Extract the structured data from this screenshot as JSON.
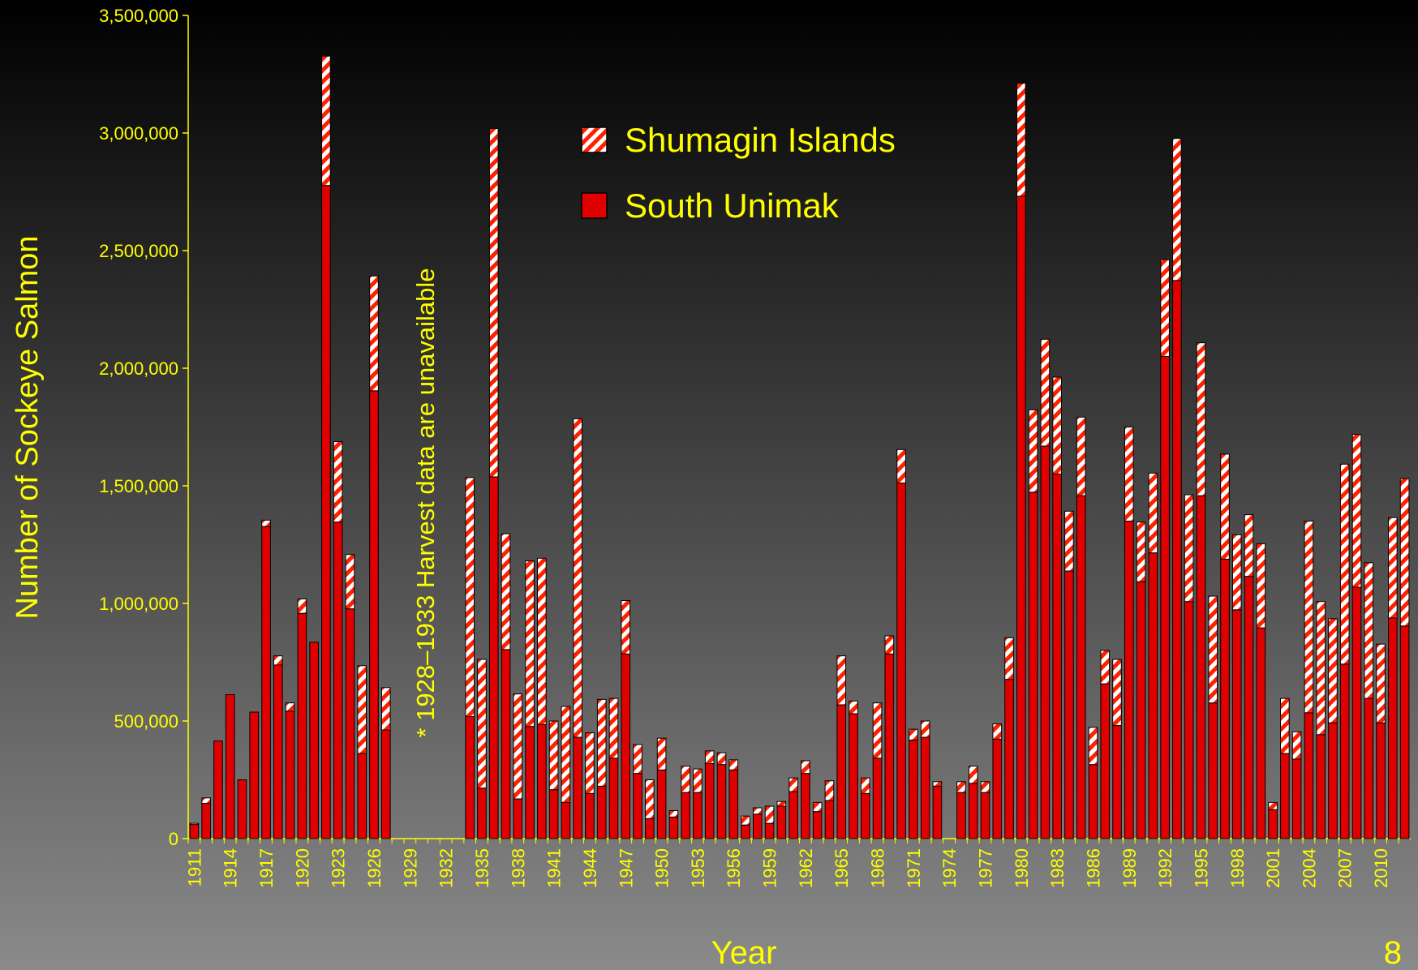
{
  "chart_data": {
    "type": "stacked_bar",
    "xlabel": "Year",
    "ylabel": "Number of Sockeye Salmon",
    "annotation": "* 1928–1933 Harvest data are unavailable",
    "categories": [
      "1911",
      null,
      null,
      "1914",
      null,
      null,
      "1917",
      null,
      null,
      "1920",
      null,
      null,
      "1923",
      null,
      null,
      "1926",
      null,
      null,
      "1929",
      null,
      null,
      "1932",
      null,
      null,
      "1935",
      null,
      null,
      "1938",
      null,
      null,
      "1941",
      null,
      null,
      "1944",
      null,
      null,
      "1947",
      null,
      null,
      "1950",
      null,
      null,
      "1953",
      null,
      null,
      "1956",
      null,
      null,
      "1959",
      null,
      null,
      "1962",
      null,
      null,
      "1965",
      null,
      null,
      "1968",
      null,
      null,
      "1971",
      null,
      null,
      "1974",
      null,
      null,
      "1977",
      null,
      null,
      "1980",
      null,
      null,
      "1983",
      null,
      null,
      "1986",
      null,
      null,
      "1989",
      null,
      null,
      "1992",
      null,
      null,
      "1995",
      null,
      null,
      "1998",
      null,
      null,
      "2001",
      null,
      null,
      "2004",
      null,
      null,
      "2007",
      null,
      null,
      "2010",
      null,
      null
    ],
    "series": [
      {
        "name": "South Unimak",
        "color": "#e00000",
        "hatch": false,
        "values": [
          60000,
          150000,
          415000,
          612000,
          250000,
          538000,
          1327000,
          738000,
          542000,
          958000,
          835000,
          2777000,
          1346000,
          977000,
          362000,
          1904000,
          462000,
          null,
          null,
          null,
          null,
          null,
          null,
          519000,
          215000,
          1538000,
          804000,
          169000,
          477000,
          485000,
          208000,
          154000,
          431000,
          192000,
          223000,
          342000,
          785000,
          277000,
          85000,
          292000,
          92000,
          196000,
          196000,
          319000,
          315000,
          292000,
          58000,
          104000,
          65000,
          138000,
          200000,
          277000,
          115000,
          162000,
          569000,
          531000,
          192000,
          342000,
          785000,
          1512000,
          419000,
          431000,
          223000,
          null,
          196000,
          235000,
          196000,
          423000,
          677000,
          2731000,
          1473000,
          1669000,
          1550000,
          1138000,
          1458000,
          315000,
          658000,
          481000,
          1350000,
          1092000,
          1215000,
          2050000,
          2373000,
          1008000,
          1458000,
          577000,
          1188000,
          973000,
          1115000,
          896000,
          123000,
          362000,
          338000,
          535000,
          442000,
          492000,
          742000,
          1069000,
          596000,
          492000,
          938000,
          904000
        ]
      },
      {
        "name": "Shumagin Islands",
        "color": "#e00000",
        "hatch": true,
        "values": [
          5000,
          23000,
          0,
          0,
          0,
          0,
          27000,
          39000,
          35000,
          61000,
          0,
          550000,
          342000,
          231000,
          373000,
          488000,
          180000,
          null,
          null,
          null,
          null,
          null,
          null,
          1016000,
          547000,
          1481000,
          492000,
          446000,
          704000,
          707000,
          292000,
          408000,
          1354000,
          258000,
          369000,
          254000,
          227000,
          123000,
          165000,
          135000,
          27000,
          112000,
          100000,
          54000,
          50000,
          43000,
          38000,
          27000,
          73000,
          20000,
          58000,
          54000,
          39000,
          84000,
          208000,
          54000,
          66000,
          235000,
          77000,
          142000,
          46000,
          69000,
          19000,
          null,
          46000,
          73000,
          46000,
          65000,
          177000,
          481000,
          350000,
          454000,
          412000,
          254000,
          334000,
          158000,
          142000,
          281000,
          400000,
          254000,
          339000,
          412000,
          604000,
          454000,
          650000,
          454000,
          447000,
          319000,
          262000,
          358000,
          31000,
          234000,
          116000,
          815000,
          566000,
          443000,
          850000,
          650000,
          577000,
          335000,
          427000,
          627000
        ]
      }
    ],
    "ylim": [
      0,
      3500000
    ],
    "yticks": [
      0,
      {
        "value": 500000,
        "label": "500,000"
      },
      {
        "value": 1000000,
        "label": "1,000,000"
      },
      {
        "value": 1500000,
        "label": "1,500,000"
      },
      {
        "value": 2000000,
        "label": "2,000,000"
      },
      {
        "value": 2500000,
        "label": "2,500,000"
      },
      {
        "value": 3000000,
        "label": "3,000,000"
      },
      {
        "value": 3500000,
        "label": "3,500,000"
      }
    ],
    "grid": false
  },
  "page_number": "8"
}
